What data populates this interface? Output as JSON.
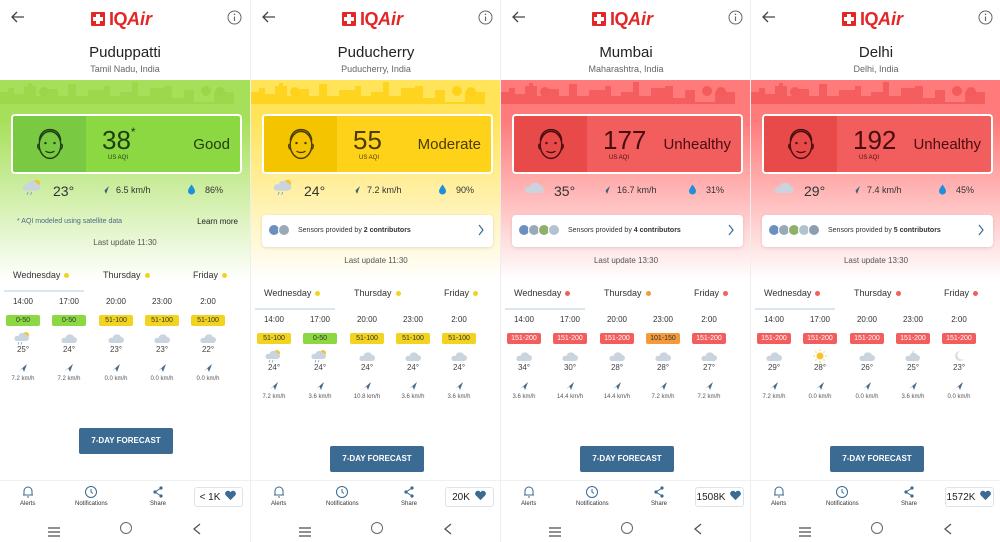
{
  "brand": {
    "iq": "IQ",
    "air": "Air"
  },
  "panels": [
    {
      "city": "Puduppatti",
      "region": "Tamil Nadu, India",
      "aqi": "38",
      "aqi_star": "*",
      "aqi_unit": "US AQI",
      "status": "Good",
      "theme": {
        "grad_top": "#a6e05a",
        "grad_bottom": "#ffffff",
        "skyline": "#9bd64a",
        "face_bg": "#7ac943",
        "card_bg": "#8bd842",
        "text": "#1f3d0e"
      },
      "temp": "23°",
      "wind": "6.5 km/h",
      "humidity": "86%",
      "note": "* AQI modeled using satellite data",
      "learn_more": "Learn more",
      "sensors": null,
      "last_update": "Last update 11:30",
      "days": [
        {
          "label": "Wednesday",
          "dot": "#f2d31f"
        },
        {
          "label": "Thursday",
          "dot": "#f2d31f"
        },
        {
          "label": "Friday",
          "dot": "#f2d31f"
        }
      ],
      "hours": [
        {
          "time": "14:00",
          "aqi": "0-50",
          "color": "#8bd842",
          "temp": "25°",
          "wind": "7.2 km/h",
          "icon": "cloud-sun-rain"
        },
        {
          "time": "17:00",
          "aqi": "0-50",
          "color": "#8bd842",
          "temp": "24°",
          "wind": "7.2 km/h",
          "icon": "cloud"
        },
        {
          "time": "20:00",
          "aqi": "51-100",
          "color": "#f2d31f",
          "temp": "23°",
          "wind": "0.0 km/h",
          "icon": "cloud"
        },
        {
          "time": "23:00",
          "aqi": "51-100",
          "color": "#f2d31f",
          "temp": "23°",
          "wind": "0.0 km/h",
          "icon": "cloud"
        },
        {
          "time": "2:00",
          "aqi": "51-100",
          "color": "#f2d31f",
          "temp": "22°",
          "wind": "0.0 km/h",
          "icon": "cloud"
        }
      ],
      "forecast_btn": "7-DAY FORECAST",
      "likes": "< 1K"
    },
    {
      "city": "Puducherry",
      "region": "Puducherry, India",
      "aqi": "55",
      "aqi_star": "",
      "aqi_unit": "US AQI",
      "status": "Moderate",
      "theme": {
        "grad_top": "#ffe45a",
        "grad_bottom": "#ffffff",
        "skyline": "#ffd21a",
        "face_bg": "#f5c400",
        "card_bg": "#ffd21a",
        "text": "#4a3b00"
      },
      "temp": "24°",
      "wind": "7.2 km/h",
      "humidity": "90%",
      "note": "",
      "learn_more": "",
      "sensors": {
        "prefix": "Sensors provided by ",
        "count": "2 contributors"
      },
      "last_update": "Last update 11:30",
      "days": [
        {
          "label": "Wednesday",
          "dot": "#f2d31f"
        },
        {
          "label": "Thursday",
          "dot": "#f2d31f"
        },
        {
          "label": "Friday",
          "dot": "#f2d31f"
        }
      ],
      "hours": [
        {
          "time": "14:00",
          "aqi": "51-100",
          "color": "#f2d31f",
          "temp": "24°",
          "wind": "7.2 km/h",
          "icon": "cloud-sun-rain"
        },
        {
          "time": "17:00",
          "aqi": "0-50",
          "color": "#8bd842",
          "temp": "24°",
          "wind": "3.6 km/h",
          "icon": "cloud-sun-rain"
        },
        {
          "time": "20:00",
          "aqi": "51-100",
          "color": "#f2d31f",
          "temp": "24°",
          "wind": "10.8 km/h",
          "icon": "cloud"
        },
        {
          "time": "23:00",
          "aqi": "51-100",
          "color": "#f2d31f",
          "temp": "24°",
          "wind": "3.6 km/h",
          "icon": "cloud"
        },
        {
          "time": "2:00",
          "aqi": "51-100",
          "color": "#f2d31f",
          "temp": "24°",
          "wind": "3.6 km/h",
          "icon": "cloud"
        }
      ],
      "forecast_btn": "7-DAY FORECAST",
      "likes": "20K"
    },
    {
      "city": "Mumbai",
      "region": "Maharashtra, India",
      "aqi": "177",
      "aqi_star": "",
      "aqi_unit": "US AQI",
      "status": "Unhealthy",
      "theme": {
        "grad_top": "#ff7a7a",
        "grad_bottom": "#ffffff",
        "skyline": "#f45b5b",
        "face_bg": "#e84a4a",
        "card_bg": "#f25d5d",
        "text": "#4a0d0d"
      },
      "temp": "35°",
      "wind": "16.7 km/h",
      "humidity": "31%",
      "note": "",
      "learn_more": "",
      "sensors": {
        "prefix": "Sensors provided by ",
        "count": "4 contributors"
      },
      "last_update": "Last update 13:30",
      "days": [
        {
          "label": "Wednesday",
          "dot": "#f25d5d"
        },
        {
          "label": "Thursday",
          "dot": "#f59a3c"
        },
        {
          "label": "Friday",
          "dot": "#f25d5d"
        }
      ],
      "hours": [
        {
          "time": "14:00",
          "aqi": "151-200",
          "color": "#f25d5d",
          "temp": "34°",
          "wind": "3.6 km/h",
          "icon": "cloud"
        },
        {
          "time": "17:00",
          "aqi": "151-200",
          "color": "#f25d5d",
          "temp": "30°",
          "wind": "14.4 km/h",
          "icon": "cloud"
        },
        {
          "time": "20:00",
          "aqi": "151-200",
          "color": "#f25d5d",
          "temp": "28°",
          "wind": "14.4 km/h",
          "icon": "cloud"
        },
        {
          "time": "23:00",
          "aqi": "101-150",
          "color": "#f59a3c",
          "temp": "28°",
          "wind": "7.2 km/h",
          "icon": "cloud"
        },
        {
          "time": "2:00",
          "aqi": "151-200",
          "color": "#f25d5d",
          "temp": "27°",
          "wind": "7.2 km/h",
          "icon": "cloud"
        }
      ],
      "forecast_btn": "7-DAY FORECAST",
      "likes": "1508K"
    },
    {
      "city": "Delhi",
      "region": "Delhi, India",
      "aqi": "192",
      "aqi_star": "",
      "aqi_unit": "US AQI",
      "status": "Unhealthy",
      "theme": {
        "grad_top": "#ff7a7a",
        "grad_bottom": "#ffffff",
        "skyline": "#f45b5b",
        "face_bg": "#e84a4a",
        "card_bg": "#f25d5d",
        "text": "#4a0d0d"
      },
      "temp": "29°",
      "wind": "7.4 km/h",
      "humidity": "45%",
      "note": "",
      "learn_more": "",
      "sensors": {
        "prefix": "Sensors provided by ",
        "count": "5 contributors"
      },
      "last_update": "Last update 13:30",
      "days": [
        {
          "label": "Wednesday",
          "dot": "#f25d5d"
        },
        {
          "label": "Thursday",
          "dot": "#f25d5d"
        },
        {
          "label": "Friday",
          "dot": "#f25d5d"
        }
      ],
      "hours": [
        {
          "time": "14:00",
          "aqi": "151-200",
          "color": "#f25d5d",
          "temp": "29°",
          "wind": "7.2 km/h",
          "icon": "cloud"
        },
        {
          "time": "17:00",
          "aqi": "151-200",
          "color": "#f25d5d",
          "temp": "28°",
          "wind": "0.0 km/h",
          "icon": "sun"
        },
        {
          "time": "20:00",
          "aqi": "151-200",
          "color": "#f25d5d",
          "temp": "26°",
          "wind": "0.0 km/h",
          "icon": "cloud"
        },
        {
          "time": "23:00",
          "aqi": "151-200",
          "color": "#f25d5d",
          "temp": "25°",
          "wind": "3.6 km/h",
          "icon": "cloud-moon"
        },
        {
          "time": "2:00",
          "aqi": "151-200",
          "color": "#f25d5d",
          "temp": "23°",
          "wind": "0.0 km/h",
          "icon": "moon"
        }
      ],
      "forecast_btn": "7-DAY FORECAST",
      "likes": "1572K"
    }
  ],
  "nav": {
    "alerts": "Alerts",
    "notifications": "Notifications",
    "share": "Share"
  }
}
